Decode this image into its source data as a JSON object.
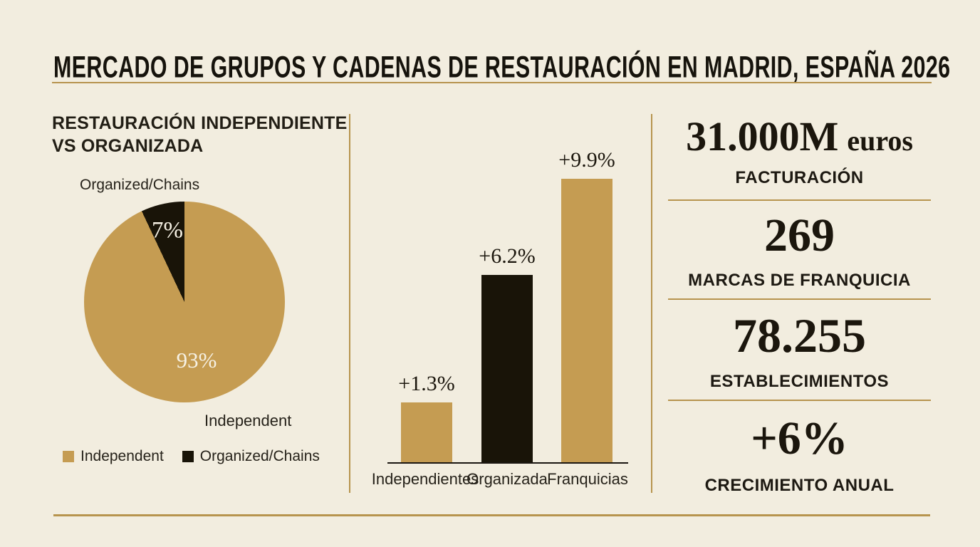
{
  "title": "MERCADO DE GRUPOS Y CADENAS DE RESTAURACIÓN EN MADRID, ESPAÑA 2026",
  "colors": {
    "background": "#f2eddf",
    "gold": "#c59c52",
    "black": "#191408",
    "rule_gold": "#b7944e",
    "text_dark": "#1d1912"
  },
  "left_panel": {
    "heading_line1": "RESTAURACIÓN INDEPENDIENTE",
    "heading_line2": "VS ORGANIZADA",
    "pie_label_top": "Organized/Chains",
    "pie_label_bottom": "Independent",
    "slice_small_pct": "7%",
    "slice_big_pct": "93%",
    "legend": [
      {
        "label": "Independent",
        "color": "#c59c52"
      },
      {
        "label": "Organized/Chains",
        "color": "#191408"
      }
    ]
  },
  "chart_data": [
    {
      "type": "pie",
      "title": "RESTAURACIÓN INDEPENDIENTE VS ORGANIZADA",
      "labels": [
        "Independent",
        "Organized/Chains"
      ],
      "values": [
        93,
        7
      ],
      "unit": "%",
      "colors": [
        "#c59c52",
        "#191408"
      ],
      "legend_position": "bottom",
      "data_labels": [
        "93%",
        "7%"
      ]
    },
    {
      "type": "bar",
      "categories": [
        "Independientes",
        "Organizada",
        "Franquicias"
      ],
      "values": [
        1.3,
        6.2,
        9.9
      ],
      "labels": [
        "+1.3%",
        "+6.2%",
        "+9.9%"
      ],
      "colors": [
        "#c59c52",
        "#191408",
        "#c59c52"
      ],
      "unit": "%",
      "ylim": [
        0,
        10.5
      ],
      "grid": false,
      "legend_position": "none"
    }
  ],
  "stats": [
    {
      "value": "31.000M",
      "suffix": "euros",
      "label": "FACTURACIÓN"
    },
    {
      "value": "269",
      "suffix": "",
      "label": "MARCAS DE FRANQUICIA"
    },
    {
      "value": "78.255",
      "suffix": "",
      "label": "ESTABLECIMIENTOS"
    },
    {
      "value": "+6%",
      "suffix": "",
      "label": "CRECIMIENTO ANUAL"
    }
  ]
}
